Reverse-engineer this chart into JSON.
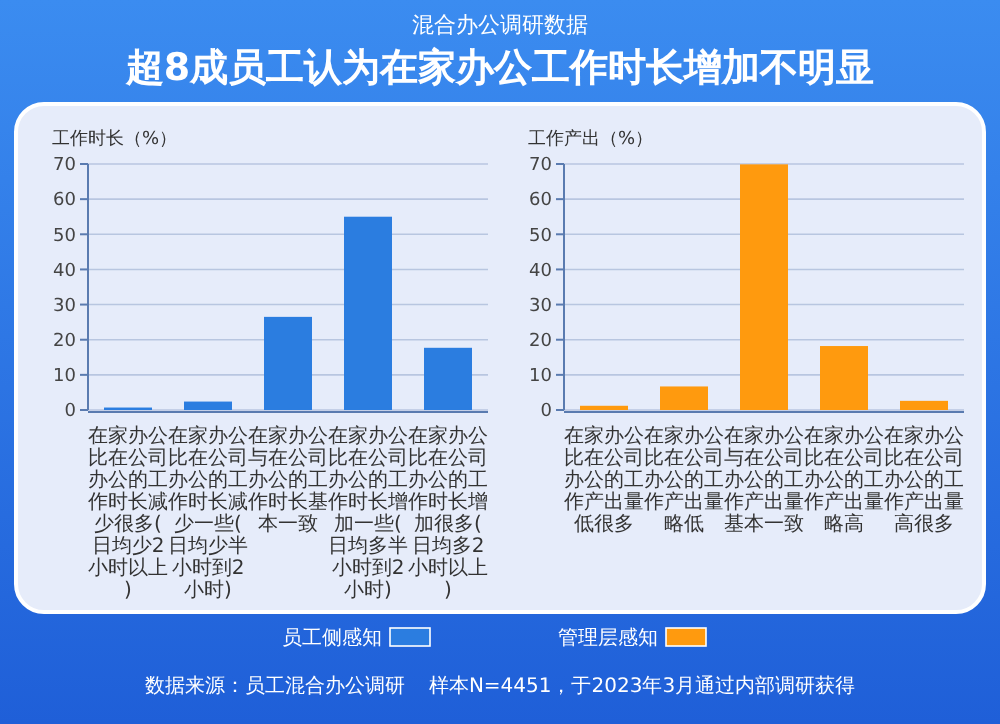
{
  "chart_data": [
    {
      "type": "bar",
      "subtitle": "混合办公调研数据",
      "title": "超8成员工认为在家办公工作时长增加不明显",
      "ylabel": "工作时长（%）",
      "categories": [
        "在家办公比在公司办公的工作时长减少很多(日均少2小时以上)",
        "在家办公比在公司办公的工作时长减少一些(日均少半小时到2小时)",
        "在家办公与在公司办公的工作时长基本一致",
        "在家办公比在公司办公的工作时长增加一些(日均多半小时到2小时)",
        "在家办公比在公司办公的工作时长增加很多(日均多2小时以上)"
      ],
      "series": [
        {
          "name": "员工侧感知",
          "color": "#2b7de0",
          "values": [
            0.7,
            2.4,
            26.5,
            55,
            17.7
          ]
        }
      ],
      "ylim": [
        0,
        70
      ],
      "yticks": [
        0,
        10,
        20,
        30,
        40,
        50,
        60,
        70
      ],
      "grid": "y",
      "legend": "bottom"
    },
    {
      "type": "bar",
      "ylabel": "工作产出（%）",
      "categories": [
        "在家办公比在公司办公的工作产出量低很多",
        "在家办公比在公司办公的工作产出量略低",
        "在家办公与在公司办公的工作产出量基本一致",
        "在家办公比在公司办公的工作产出量略高",
        "在家办公比在公司办公的工作产出量高很多"
      ],
      "series": [
        {
          "name": "管理层感知",
          "color": "#ff9a0e",
          "values": [
            1.2,
            6.7,
            69.9,
            18.2,
            2.6
          ]
        }
      ],
      "ylim": [
        0,
        70
      ],
      "yticks": [
        0,
        10,
        20,
        30,
        40,
        50,
        60,
        70
      ],
      "grid": "y",
      "legend": "bottom",
      "annotations": [
        "数据来源：员工混合办公调研",
        "样本N=4451，于2023年3月通过内部调研获得"
      ]
    }
  ]
}
